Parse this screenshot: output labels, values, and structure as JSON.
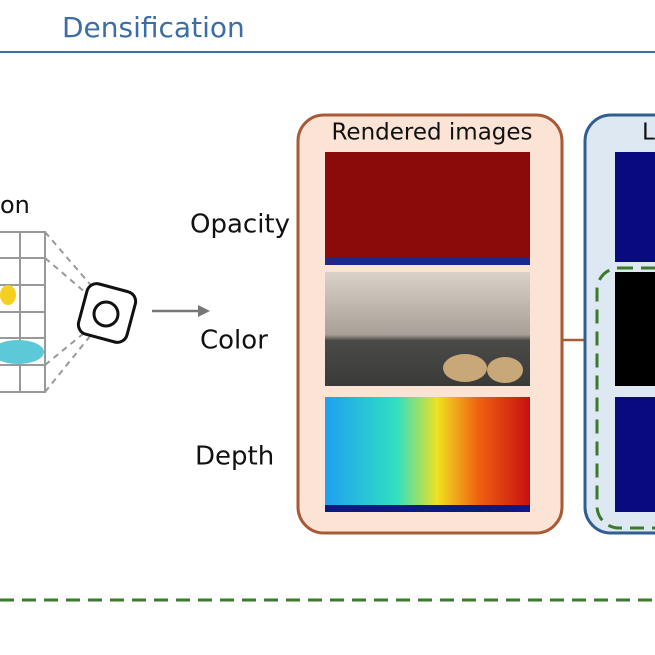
{
  "header": {
    "title": "Densification"
  },
  "left": {
    "label": "on"
  },
  "rows": {
    "labels": [
      "Opacity",
      "Color",
      "Depth"
    ]
  },
  "rendered_box": {
    "title": "Rendered images"
  },
  "right_box": {
    "title": "L"
  }
}
